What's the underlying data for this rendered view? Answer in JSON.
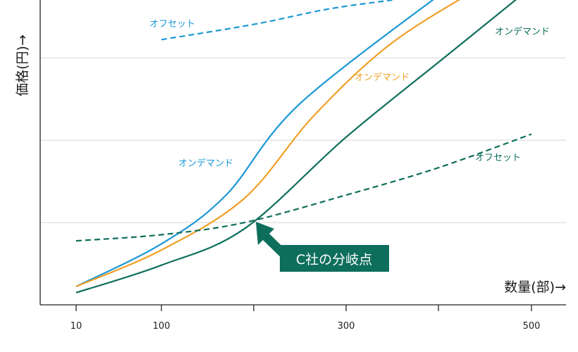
{
  "chart_data": {
    "type": "line",
    "xlabel": "数量(部)→",
    "ylabel": "価格(円)→",
    "x_ticks": [
      "10",
      "100",
      "",
      "300",
      "",
      "500"
    ],
    "y_unit_note": "relative price (no y tick values printed)",
    "grid": "horizontal",
    "series": [
      {
        "label": "オンデマンド",
        "color": "#1a97d5",
        "dash": "solid",
        "points": [
          [
            10,
            0.06
          ],
          [
            100,
            0.2
          ],
          [
            170,
            0.36
          ],
          [
            250,
            0.66
          ],
          [
            420,
            1.06
          ]
        ]
      },
      {
        "label": "オンデマンド",
        "color": "#f0a028",
        "dash": "solid",
        "points": [
          [
            10,
            0.06
          ],
          [
            100,
            0.18
          ],
          [
            190,
            0.35
          ],
          [
            265,
            0.62
          ],
          [
            350,
            0.86
          ],
          [
            455,
            1.06
          ]
        ]
      },
      {
        "label": "オンデマンド",
        "color": "#0e6e5c",
        "dash": "solid",
        "points": [
          [
            10,
            0.04
          ],
          [
            100,
            0.13
          ],
          [
            190,
            0.25
          ],
          [
            300,
            0.55
          ],
          [
            410,
            0.82
          ],
          [
            495,
            1.03
          ]
        ]
      },
      {
        "label": "オフセット",
        "color": "#1a97d5",
        "dash": "dashed",
        "points": [
          [
            100,
            0.87
          ],
          [
            200,
            0.92
          ],
          [
            280,
            0.97
          ],
          [
            350,
            1.0
          ]
        ]
      },
      {
        "label": "オフセット",
        "color": "#0e6e5c",
        "dash": "dashed",
        "points": [
          [
            10,
            0.21
          ],
          [
            100,
            0.23
          ],
          [
            190,
            0.27
          ],
          [
            300,
            0.36
          ],
          [
            400,
            0.45
          ],
          [
            500,
            0.56
          ]
        ]
      }
    ],
    "annotation": {
      "text": "C社の分岐点",
      "x": 197,
      "y": 0.27
    }
  }
}
